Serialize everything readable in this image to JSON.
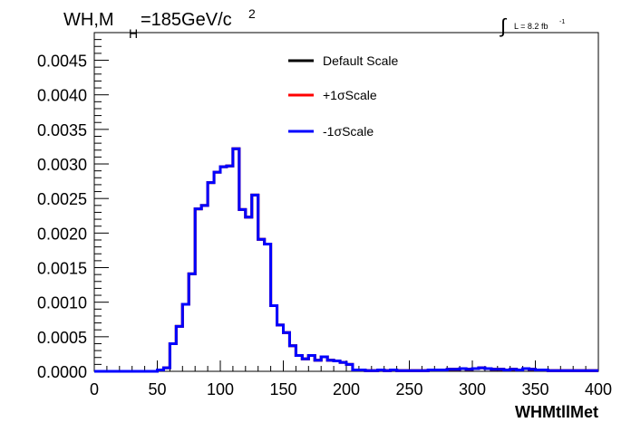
{
  "chart_data": {
    "type": "line",
    "title_main": "WH,M",
    "title_sub": "H",
    "title_rest": "=185GeV/c",
    "title_sup": "2",
    "lumi_text": "L = 8.2 fb",
    "lumi_sup": "-1",
    "lumi_integral": "∫",
    "xlabel": "WHMtllMet",
    "ylabel": "",
    "xlim": [
      0,
      400
    ],
    "ylim": [
      0,
      0.0049
    ],
    "x_ticks": [
      0,
      50,
      100,
      150,
      200,
      250,
      300,
      350,
      400
    ],
    "y_ticks": [
      0.0,
      0.0005,
      0.001,
      0.0015,
      0.002,
      0.0025,
      0.003,
      0.0035,
      0.004,
      0.0045
    ],
    "y_tick_labels": [
      "0.0000",
      "0.0005",
      "0.0010",
      "0.0015",
      "0.0020",
      "0.0025",
      "0.0030",
      "0.0035",
      "0.0040",
      "0.0045"
    ],
    "grid": false,
    "legend_position": "top-center",
    "bin_edges": [
      0,
      5,
      10,
      15,
      20,
      25,
      30,
      35,
      40,
      45,
      50,
      55,
      60,
      65,
      70,
      75,
      80,
      85,
      90,
      95,
      100,
      105,
      110,
      115,
      120,
      125,
      130,
      135,
      140,
      145,
      150,
      155,
      160,
      165,
      170,
      175,
      180,
      185,
      190,
      195,
      200,
      205,
      210,
      215,
      220,
      225,
      230,
      235,
      240,
      245,
      250,
      255,
      260,
      265,
      270,
      275,
      280,
      285,
      290,
      295,
      300,
      305,
      310,
      315,
      320,
      325,
      330,
      335,
      340,
      345,
      350,
      355,
      360,
      365,
      370,
      375,
      380,
      385,
      390,
      395,
      400
    ],
    "series": [
      {
        "name": "Default Scale",
        "color": "#000000",
        "values": [
          0,
          0,
          0,
          0,
          0,
          0,
          0,
          0,
          0,
          0,
          2e-05,
          5e-05,
          0.0004,
          0.00065,
          0.00097,
          0.00141,
          0.00235,
          0.0024,
          0.00273,
          0.00288,
          0.00296,
          0.00297,
          0.00322,
          0.00234,
          0.00223,
          0.00255,
          0.00191,
          0.00184,
          0.00095,
          0.00067,
          0.00056,
          0.00037,
          0.00023,
          0.00018,
          0.00023,
          0.00016,
          0.00021,
          0.00016,
          0.00015,
          0.00013,
          0.0001,
          2e-05,
          2e-05,
          1e-05,
          1e-05,
          2e-05,
          1e-05,
          2e-05,
          1e-05,
          1e-05,
          1e-05,
          1e-05,
          1e-05,
          2e-05,
          2e-05,
          2e-05,
          3e-05,
          3e-05,
          4e-05,
          3e-05,
          4e-05,
          5e-05,
          4e-05,
          3e-05,
          3e-05,
          2e-05,
          3e-05,
          2e-05,
          4e-05,
          3e-05,
          2e-05,
          2e-05,
          1e-05,
          1e-05,
          1e-05,
          1e-05,
          1e-05,
          1e-05,
          1e-05,
          1e-05
        ]
      },
      {
        "name": "+1σScale",
        "color": "#ff0000",
        "values": [
          0,
          0,
          0,
          0,
          0,
          0,
          0,
          0,
          0,
          0,
          2e-05,
          5e-05,
          0.0004,
          0.00065,
          0.00097,
          0.00141,
          0.00235,
          0.0024,
          0.00273,
          0.00288,
          0.00296,
          0.00297,
          0.00322,
          0.00234,
          0.00223,
          0.00255,
          0.00191,
          0.00184,
          0.00095,
          0.00067,
          0.00056,
          0.00037,
          0.00023,
          0.00018,
          0.00023,
          0.00016,
          0.00021,
          0.00016,
          0.00015,
          0.00013,
          0.0001,
          2e-05,
          2e-05,
          1e-05,
          1e-05,
          2e-05,
          1e-05,
          2e-05,
          1e-05,
          1e-05,
          1e-05,
          1e-05,
          1e-05,
          2e-05,
          2e-05,
          2e-05,
          3e-05,
          3e-05,
          4e-05,
          3e-05,
          4e-05,
          5e-05,
          4e-05,
          3e-05,
          3e-05,
          2e-05,
          3e-05,
          2e-05,
          4e-05,
          3e-05,
          2e-05,
          2e-05,
          1e-05,
          1e-05,
          1e-05,
          1e-05,
          1e-05,
          1e-05,
          1e-05,
          1e-05
        ]
      },
      {
        "name": "-1σScale",
        "color": "#0000ff",
        "values": [
          0,
          0,
          0,
          0,
          0,
          0,
          0,
          0,
          0,
          0,
          2e-05,
          5e-05,
          0.0004,
          0.00065,
          0.00097,
          0.00141,
          0.00235,
          0.0024,
          0.00273,
          0.00288,
          0.00296,
          0.00297,
          0.00322,
          0.00234,
          0.00223,
          0.00255,
          0.00191,
          0.00184,
          0.00095,
          0.00067,
          0.00056,
          0.00037,
          0.00023,
          0.00018,
          0.00023,
          0.00016,
          0.00021,
          0.00016,
          0.00015,
          0.00013,
          0.0001,
          2e-05,
          2e-05,
          1e-05,
          1e-05,
          2e-05,
          1e-05,
          2e-05,
          1e-05,
          1e-05,
          1e-05,
          1e-05,
          1e-05,
          2e-05,
          2e-05,
          2e-05,
          3e-05,
          3e-05,
          4e-05,
          3e-05,
          4e-05,
          5e-05,
          4e-05,
          3e-05,
          3e-05,
          2e-05,
          3e-05,
          2e-05,
          4e-05,
          3e-05,
          2e-05,
          2e-05,
          1e-05,
          1e-05,
          1e-05,
          1e-05,
          1e-05,
          1e-05,
          1e-05,
          1e-05
        ]
      }
    ]
  }
}
